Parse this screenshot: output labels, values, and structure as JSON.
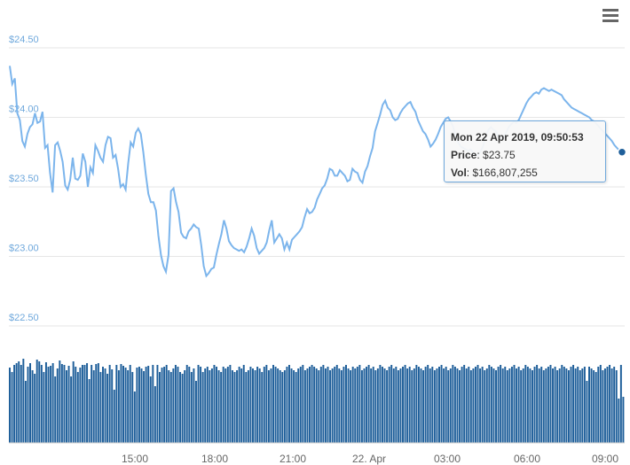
{
  "chart_data": [
    {
      "type": "line",
      "series": [
        {
          "values": [
            24.37,
            24.24,
            24.28,
            24.03,
            23.98,
            23.83,
            23.79,
            23.88,
            23.93,
            23.95,
            24.03,
            23.96,
            23.97,
            24.04,
            23.78,
            23.8,
            23.6,
            23.46,
            23.8,
            23.82,
            23.76,
            23.68,
            23.51,
            23.48,
            23.55,
            23.71,
            23.56,
            23.55,
            23.58,
            23.74,
            23.68,
            23.5,
            23.64,
            23.6,
            23.8,
            23.76,
            23.71,
            23.68,
            23.8,
            23.86,
            23.85,
            23.71,
            23.73,
            23.63,
            23.5,
            23.52,
            23.48,
            23.67,
            23.82,
            23.79,
            23.89,
            23.92,
            23.88,
            23.75,
            23.59,
            23.45,
            23.39,
            23.39,
            23.33,
            23.15,
            23.01,
            22.93,
            22.89,
            23.01,
            23.47,
            23.49,
            23.39,
            23.32,
            23.17,
            23.14,
            23.13,
            23.18,
            23.2,
            23.23,
            23.21,
            23.2,
            23.08,
            22.93,
            22.86,
            22.88,
            22.91,
            22.92,
            23.01,
            23.09,
            23.16,
            23.26,
            23.2,
            23.11,
            23.08,
            23.06,
            23.05,
            23.04,
            23.05,
            23.03,
            23.07,
            23.13,
            23.2,
            23.15,
            23.06,
            23.02,
            23.04,
            23.06,
            23.1,
            23.19,
            23.26,
            23.1,
            23.13,
            23.16,
            23.13,
            23.05,
            23.1,
            23.05,
            23.12,
            23.14,
            23.16,
            23.18,
            23.21,
            23.28,
            23.34,
            23.31,
            23.32,
            23.35,
            23.41,
            23.45,
            23.49,
            23.51,
            23.56,
            23.63,
            23.62,
            23.58,
            23.58,
            23.62,
            23.6,
            23.58,
            23.54,
            23.55,
            23.63,
            23.61,
            23.6,
            23.55,
            23.53,
            23.61,
            23.65,
            23.72,
            23.78,
            23.9,
            23.96,
            24.02,
            24.09,
            24.12,
            24.07,
            24.05,
            24.0,
            23.98,
            23.99,
            24.03,
            24.06,
            24.08,
            24.1,
            24.11,
            24.07,
            24.04,
            23.98,
            23.94,
            23.9,
            23.88,
            23.84,
            23.79,
            23.81,
            23.84,
            23.88,
            23.93,
            23.96,
            23.99,
            24.0,
            23.97,
            23.93,
            23.86,
            23.82,
            23.79,
            23.78,
            23.77,
            23.76,
            23.77,
            23.74,
            23.73,
            23.73,
            23.76,
            23.8,
            23.87,
            23.91,
            23.93,
            23.91,
            23.9,
            23.86,
            23.84,
            23.86,
            23.89,
            23.93,
            23.95,
            23.97,
            23.96,
            23.98,
            24.02,
            24.06,
            24.1,
            24.13,
            24.15,
            24.17,
            24.18,
            24.17,
            24.2,
            24.21,
            24.2,
            24.19,
            24.2,
            24.19,
            24.18,
            24.17,
            24.16,
            24.13,
            24.11,
            24.09,
            24.07,
            24.06,
            24.05,
            24.04,
            24.03,
            24.02,
            24.01,
            24.0,
            23.98,
            23.97,
            23.95,
            23.93,
            23.91,
            23.89,
            23.87,
            23.85,
            23.83,
            23.8,
            23.78,
            23.76,
            23.75
          ]
        },
        {
          "values": [
            85,
            80,
            88,
            90,
            92,
            88,
            95,
            70,
            86,
            90,
            82,
            78,
            94,
            92,
            88,
            80,
            91,
            86,
            87,
            90,
            75,
            84,
            93,
            89,
            88,
            82,
            87,
            75,
            92,
            86,
            80,
            85,
            88,
            88,
            90,
            72,
            88,
            82,
            89,
            90,
            80,
            86,
            84,
            78,
            88,
            83,
            60,
            88,
            82,
            89,
            87,
            85,
            82,
            88,
            80,
            58,
            85,
            86,
            84,
            81,
            86,
            87,
            75,
            88,
            64,
            88,
            80,
            85,
            86,
            88,
            82,
            80,
            84,
            88,
            86,
            80,
            78,
            82,
            88,
            86,
            80,
            84,
            70,
            88,
            86,
            80,
            84,
            86,
            82,
            84,
            88,
            86,
            82,
            80,
            86,
            84,
            86,
            88,
            82,
            80,
            82,
            86,
            84,
            88,
            80,
            82,
            86,
            84,
            82,
            86,
            84,
            80,
            86,
            88,
            82,
            84,
            88,
            86,
            84,
            82,
            80,
            82,
            86,
            88,
            84,
            82,
            80,
            84,
            86,
            88,
            82,
            84,
            86,
            88,
            86,
            84,
            82,
            86,
            88,
            84,
            86,
            82,
            84,
            86,
            88,
            84,
            82,
            86,
            88,
            84,
            82,
            86,
            84,
            86,
            88,
            82,
            84,
            86,
            88,
            84,
            86,
            82,
            84,
            88,
            86,
            84,
            82,
            86,
            88,
            84,
            86,
            82,
            84,
            86,
            88,
            84,
            86,
            82,
            84,
            88,
            86,
            84,
            82,
            86,
            88,
            84,
            86,
            82,
            84,
            86,
            88,
            84,
            86,
            82,
            84,
            88,
            86,
            84,
            82,
            86,
            88,
            84,
            86,
            82,
            84,
            86,
            88,
            84,
            86,
            82,
            84,
            88,
            86,
            84,
            82,
            86,
            88,
            84,
            86,
            82,
            84,
            86,
            88,
            84,
            86,
            82,
            84,
            88,
            86,
            84,
            82,
            86,
            88,
            84,
            86,
            82,
            84,
            86,
            88,
            84,
            86,
            82,
            84,
            88,
            86,
            84,
            82,
            86,
            88,
            84,
            86,
            82,
            84,
            86,
            70,
            86,
            84,
            82,
            80,
            86,
            88,
            82,
            84,
            86,
            88,
            84,
            86,
            82,
            50,
            88,
            52
          ]
        }
      ],
      "y_tick_labels": [
        "$24.50",
        "$24.00",
        "$23.50",
        "$23.00",
        "$22.50"
      ],
      "x_tick_labels": [
        "15:00",
        "18:00",
        "21:00",
        "22. Apr",
        "03:00",
        "06:00",
        "09:00"
      ],
      "ylim": [
        22.5,
        24.5
      ],
      "grid": true,
      "tooltip": {
        "header": "Mon 22 Apr 2019, 09:50:53",
        "price_label": "Price",
        "price_value": "$23.75",
        "vol_label": "Vol",
        "vol_value": "$166,807,255"
      },
      "colors": {
        "line": "#7cb5ec",
        "bars": "#1f5f9a",
        "marker": "#1f5f9a",
        "axis_labels": "#6fa8dc"
      }
    }
  ],
  "menu": {
    "icon": "hamburger-menu-icon"
  }
}
